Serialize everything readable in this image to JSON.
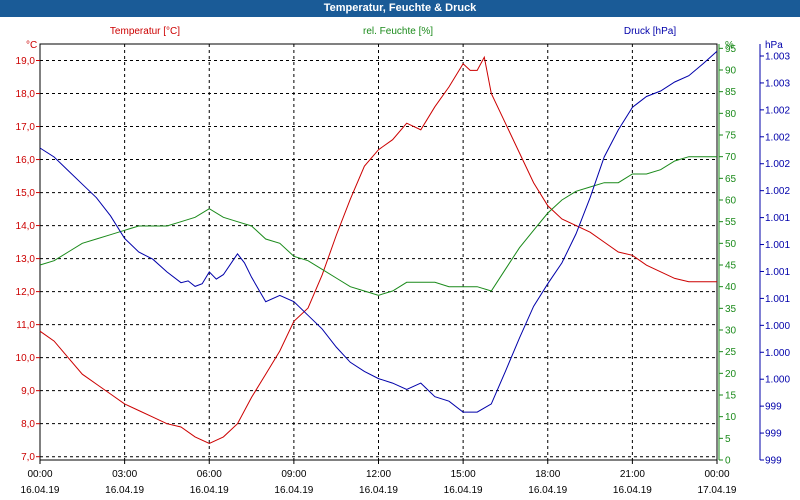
{
  "window": {
    "title": "Temperatur, Feuchte & Druck"
  },
  "colors": {
    "temperature": "#cc0000",
    "humidity": "#1a8a1a",
    "pressure": "#0000aa",
    "titlebar": "#1a5b97",
    "grid": "#000000"
  },
  "chart_data": {
    "type": "line",
    "title": "Temperatur, Feuchte & Druck",
    "grid": true,
    "x_ticks": [
      {
        "time": "00:00",
        "date": "16.04.19"
      },
      {
        "time": "03:00",
        "date": "16.04.19"
      },
      {
        "time": "06:00",
        "date": "16.04.19"
      },
      {
        "time": "09:00",
        "date": "16.04.19"
      },
      {
        "time": "12:00",
        "date": "16.04.19"
      },
      {
        "time": "15:00",
        "date": "16.04.19"
      },
      {
        "time": "18:00",
        "date": "16.04.19"
      },
      {
        "time": "21:00",
        "date": "16.04.19"
      },
      {
        "time": "00:00",
        "date": "17.04.19"
      }
    ],
    "axes": {
      "temperature": {
        "unit": "°C",
        "ylim": [
          6.9,
          19.5
        ],
        "ticks": [
          "19,0",
          "18,0",
          "17,0",
          "16,0",
          "15,0",
          "14,0",
          "13,0",
          "12,0",
          "11,0",
          "10,0",
          "9,0",
          "8,0",
          "7,0"
        ],
        "tick_values": [
          19,
          18,
          17,
          16,
          15,
          14,
          13,
          12,
          11,
          10,
          9,
          8,
          7
        ]
      },
      "humidity": {
        "unit": "%",
        "ylim": [
          0,
          96
        ],
        "ticks": [
          "95",
          "90",
          "85",
          "80",
          "75",
          "70",
          "65",
          "60",
          "55",
          "50",
          "45",
          "40",
          "35",
          "30",
          "25",
          "20",
          "15",
          "10",
          "5",
          "0"
        ],
        "tick_values": [
          95,
          90,
          85,
          80,
          75,
          70,
          65,
          60,
          55,
          50,
          45,
          40,
          35,
          30,
          25,
          20,
          15,
          10,
          5,
          0
        ]
      },
      "pressure": {
        "unit": "hPa",
        "ylim": [
          998.6,
          1003.2
        ],
        "ticks": [
          "1.003",
          "1.003",
          "1.002",
          "1.002",
          "1.002",
          "1.002",
          "1.001",
          "1.001",
          "1.001",
          "1.001",
          "1.000",
          "1.000",
          "1.000",
          "999",
          "999",
          "999"
        ]
      }
    },
    "series": [
      {
        "name": "Temperatur [°C]",
        "axis": "temperature",
        "x_hours": [
          0,
          0.5,
          1,
          1.5,
          2,
          2.5,
          3,
          3.5,
          4,
          4.5,
          5,
          5.5,
          6,
          6.5,
          7,
          7.5,
          8,
          8.5,
          9,
          9.5,
          10,
          10.5,
          11,
          11.5,
          12,
          12.5,
          13,
          13.5,
          14,
          14.5,
          15,
          15.25,
          15.5,
          15.75,
          16,
          16.5,
          17,
          17.5,
          18,
          18.5,
          19,
          19.5,
          20,
          20.5,
          21,
          21.5,
          22,
          22.5,
          23,
          23.5,
          24
        ],
        "values": [
          10.8,
          10.5,
          10.0,
          9.5,
          9.2,
          8.9,
          8.6,
          8.4,
          8.2,
          8.0,
          7.9,
          7.6,
          7.4,
          7.6,
          8.0,
          8.8,
          9.5,
          10.2,
          11.1,
          11.5,
          12.5,
          13.7,
          14.8,
          15.8,
          16.3,
          16.6,
          17.1,
          16.9,
          17.6,
          18.2,
          18.9,
          18.7,
          18.7,
          19.1,
          18.0,
          17.1,
          16.2,
          15.3,
          14.6,
          14.2,
          14.0,
          13.8,
          13.5,
          13.2,
          13.1,
          12.8,
          12.6,
          12.4,
          12.3,
          12.3,
          12.3
        ]
      },
      {
        "name": "rel. Feuchte [%]",
        "axis": "humidity",
        "x_hours": [
          0,
          0.5,
          1,
          1.5,
          2,
          2.5,
          3,
          3.5,
          4,
          4.5,
          5,
          5.5,
          6,
          6.5,
          7,
          7.5,
          8,
          8.5,
          9,
          9.5,
          10,
          10.5,
          11,
          11.5,
          12,
          12.5,
          13,
          13.5,
          14,
          14.5,
          15,
          15.5,
          16,
          16.5,
          17,
          17.5,
          18,
          18.5,
          19,
          19.5,
          20,
          20.5,
          21,
          21.5,
          22,
          22.5,
          23,
          23.5,
          24
        ],
        "values": [
          45,
          46,
          48,
          50,
          51,
          52,
          53,
          54,
          54,
          54,
          55,
          56,
          58,
          56,
          55,
          54,
          51,
          50,
          47,
          46,
          44,
          42,
          40,
          39,
          38,
          39,
          41,
          41,
          41,
          40,
          40,
          40,
          39,
          44,
          49,
          53,
          57,
          60,
          62,
          63,
          64,
          64,
          66,
          66,
          67,
          69,
          70,
          70,
          70
        ]
      },
      {
        "name": "Druck [hPa]",
        "axis": "pressure",
        "x_hours": [
          0,
          0.5,
          1,
          1.5,
          2,
          2.5,
          3,
          3.5,
          4,
          4.5,
          5,
          5.25,
          5.5,
          5.75,
          6,
          6.25,
          6.5,
          7,
          7.25,
          7.5,
          8,
          8.5,
          9,
          9.5,
          10,
          10.5,
          11,
          11.5,
          12,
          12.5,
          13,
          13.5,
          14,
          14.5,
          15,
          15.5,
          16,
          16.5,
          17,
          17.5,
          18,
          18.5,
          19,
          19.5,
          20,
          20.5,
          21,
          21.5,
          22,
          22.5,
          23,
          23.5,
          24
        ],
        "values": [
          1002.05,
          1001.95,
          1001.8,
          1001.65,
          1001.5,
          1001.3,
          1001.05,
          1000.9,
          1000.82,
          1000.68,
          1000.56,
          1000.58,
          1000.52,
          1000.55,
          1000.68,
          1000.6,
          1000.65,
          1000.88,
          1000.78,
          1000.62,
          1000.35,
          1000.42,
          1000.35,
          1000.2,
          1000.05,
          999.85,
          999.68,
          999.58,
          999.5,
          999.45,
          999.38,
          999.45,
          999.3,
          999.25,
          999.13,
          999.13,
          999.22,
          999.58,
          999.95,
          1000.3,
          1000.55,
          1000.78,
          1001.1,
          1001.5,
          1001.95,
          1002.25,
          1002.5,
          1002.62,
          1002.68,
          1002.78,
          1002.85,
          1002.98,
          1003.12
        ]
      }
    ]
  }
}
